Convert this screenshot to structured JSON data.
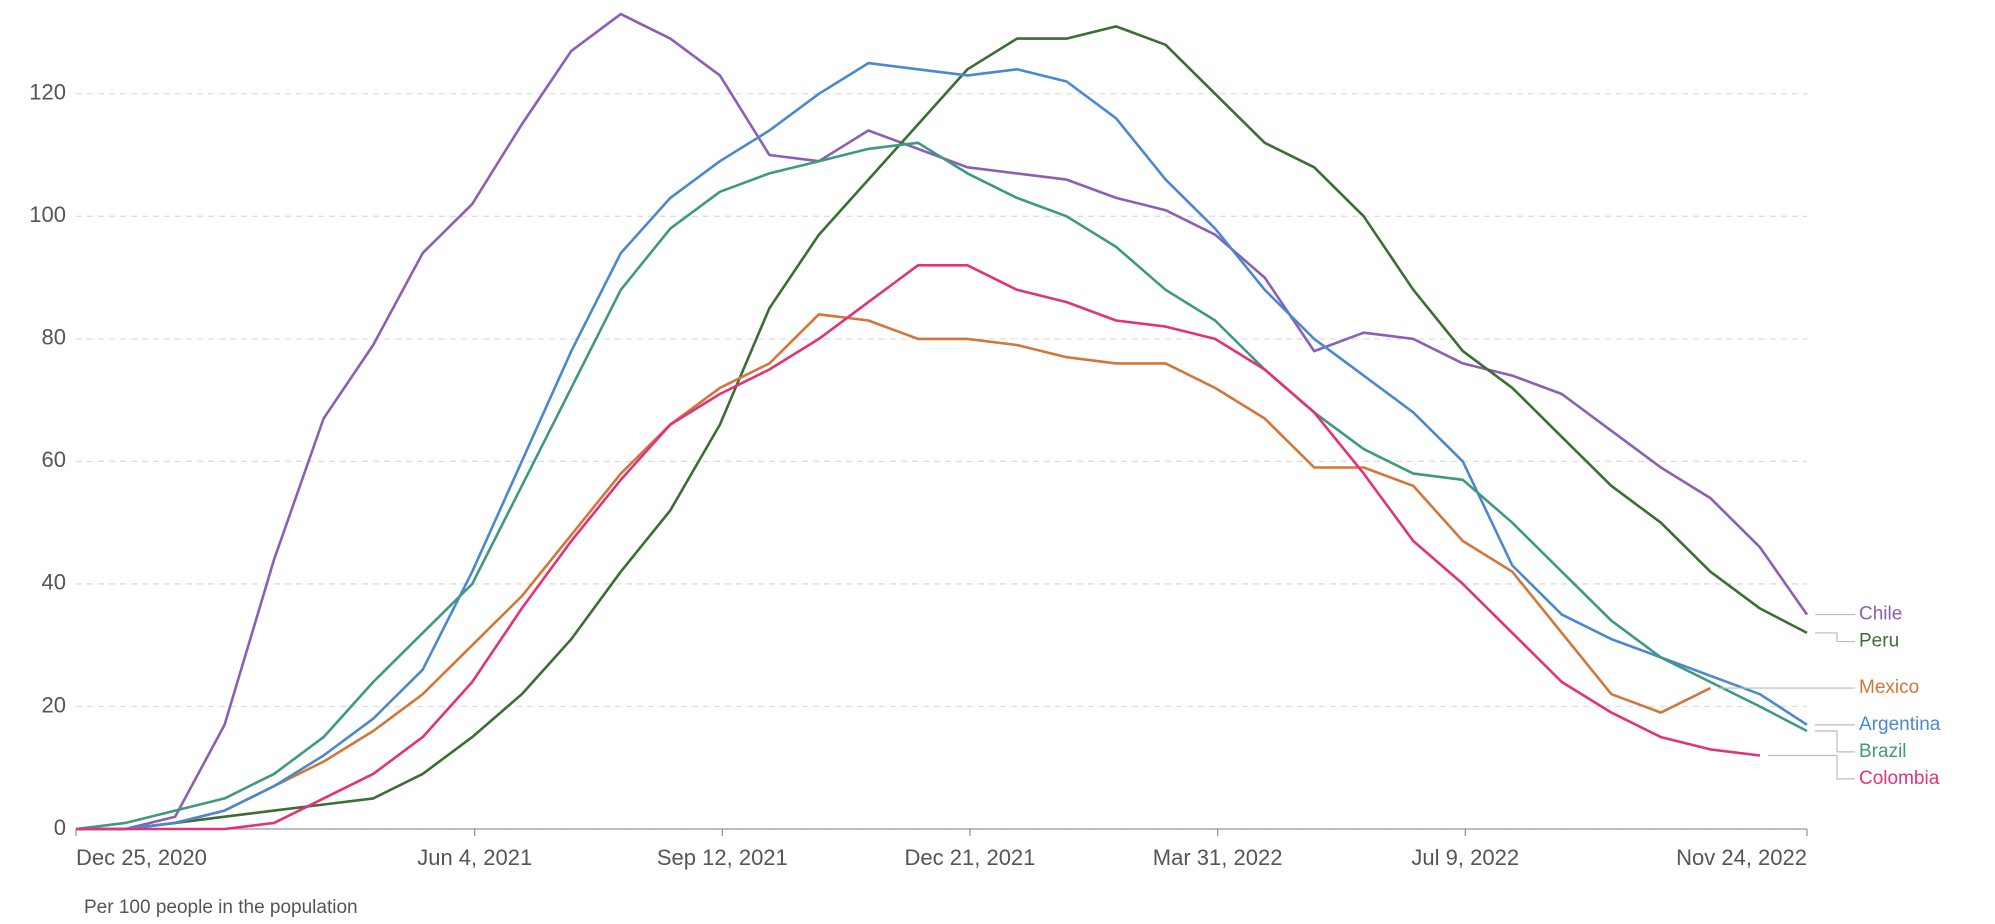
{
  "chart_data": {
    "type": "line",
    "x_label": "Per 100 people in the population",
    "x": [
      "2020-12-25",
      "2021-01-14",
      "2021-02-03",
      "2021-02-23",
      "2021-03-15",
      "2021-04-04",
      "2021-04-24",
      "2021-05-14",
      "2021-06-03",
      "2021-06-23",
      "2021-07-13",
      "2021-08-02",
      "2021-08-22",
      "2021-09-11",
      "2021-10-01",
      "2021-10-21",
      "2021-11-10",
      "2021-11-30",
      "2021-12-20",
      "2022-01-09",
      "2022-01-29",
      "2022-02-18",
      "2022-03-10",
      "2022-03-30",
      "2022-04-19",
      "2022-05-09",
      "2022-05-29",
      "2022-06-18",
      "2022-07-08",
      "2022-07-28",
      "2022-08-17",
      "2022-09-06",
      "2022-09-26",
      "2022-10-16",
      "2022-11-05",
      "2022-11-24"
    ],
    "series": [
      {
        "name": "Chile",
        "color": "#8c5fb4",
        "values": [
          0,
          0,
          2,
          17,
          44,
          67,
          79,
          94,
          102,
          115,
          127,
          133,
          129,
          123,
          110,
          109,
          114,
          111,
          108,
          107,
          106,
          103,
          101,
          97,
          90,
          78,
          81,
          80,
          76,
          74,
          71,
          65,
          59,
          54,
          46,
          35
        ]
      },
      {
        "name": "Peru",
        "color": "#3a6e33",
        "values": [
          0,
          0,
          1,
          2,
          3,
          4,
          5,
          9,
          15,
          22,
          31,
          42,
          52,
          66,
          85,
          97,
          106,
          115,
          124,
          129,
          129,
          131,
          128,
          120,
          112,
          108,
          100,
          88,
          78,
          72,
          64,
          56,
          50,
          42,
          36,
          32
        ]
      },
      {
        "name": "Mexico",
        "color": "#d2773a",
        "values": [
          0,
          0,
          1,
          3,
          7,
          11,
          16,
          22,
          30,
          38,
          48,
          58,
          66,
          72,
          76,
          84,
          83,
          80,
          80,
          79,
          77,
          76,
          76,
          72,
          67,
          59,
          59,
          56,
          47,
          42,
          32,
          22,
          19,
          23,
          null,
          null
        ]
      },
      {
        "name": "Argentina",
        "color": "#4a88cf",
        "values": [
          0,
          0,
          1,
          3,
          7,
          12,
          18,
          26,
          42,
          60,
          78,
          94,
          103,
          109,
          114,
          120,
          125,
          124,
          123,
          124,
          122,
          116,
          106,
          98,
          88,
          80,
          74,
          68,
          60,
          43,
          35,
          31,
          28,
          25,
          22,
          17
        ]
      },
      {
        "name": "Brazil",
        "color": "#3e9a7e",
        "values": [
          0,
          1,
          3,
          5,
          9,
          15,
          24,
          32,
          40,
          56,
          72,
          88,
          98,
          104,
          107,
          109,
          111,
          112,
          107,
          103,
          100,
          95,
          88,
          83,
          75,
          68,
          62,
          58,
          57,
          50,
          42,
          34,
          28,
          24,
          20,
          16
        ]
      },
      {
        "name": "Colombia",
        "color": "#e0337a",
        "values": [
          0,
          0,
          0,
          0,
          1,
          5,
          9,
          15,
          24,
          36,
          47,
          57,
          66,
          71,
          75,
          80,
          86,
          92,
          92,
          88,
          86,
          83,
          82,
          80,
          75,
          68,
          58,
          47,
          40,
          32,
          24,
          19,
          15,
          13,
          12,
          null
        ]
      }
    ],
    "xlim": [
      "2020-12-25",
      "2022-11-24"
    ],
    "xticks": [
      {
        "value": "2020-12-25",
        "label": "Dec 25, 2020"
      },
      {
        "value": "2021-06-04",
        "label": "Jun 4, 2021"
      },
      {
        "value": "2021-09-12",
        "label": "Sep 12, 2021"
      },
      {
        "value": "2021-12-21",
        "label": "Dec 21, 2021"
      },
      {
        "value": "2022-03-31",
        "label": "Mar 31, 2022"
      },
      {
        "value": "2022-07-09",
        "label": "Jul 9, 2022"
      },
      {
        "value": "2022-11-24",
        "label": "Nov 24, 2022"
      }
    ],
    "ylim": [
      0,
      134
    ],
    "yticks": [
      0,
      20,
      40,
      60,
      80,
      100,
      120
    ],
    "grid": true
  }
}
